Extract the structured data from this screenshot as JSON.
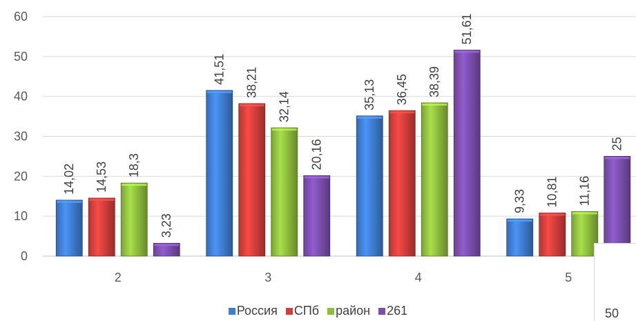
{
  "chart_data": {
    "type": "bar",
    "title": "",
    "xlabel": "",
    "ylabel": "",
    "ylim": [
      0,
      60
    ],
    "yticks": [
      0,
      10,
      20,
      30,
      40,
      50,
      60
    ],
    "grid": true,
    "legend_position": "bottom",
    "categories": [
      "2",
      "3",
      "4",
      "5"
    ],
    "series": [
      {
        "name": "Россия",
        "color": "#3f7dd1",
        "values": [
          14.02,
          41.51,
          35.13,
          9.33
        ],
        "labels": [
          "14,02",
          "41,51",
          "35,13",
          "9,33"
        ]
      },
      {
        "name": "СПб",
        "color": "#d23f3b",
        "values": [
          14.53,
          38.21,
          36.45,
          10.81
        ],
        "labels": [
          "14,53",
          "38,21",
          "36,45",
          "10,81"
        ]
      },
      {
        "name": "район",
        "color": "#8fbe3e",
        "values": [
          18.3,
          32.14,
          38.39,
          11.16
        ],
        "labels": [
          "18,3",
          "32,14",
          "38,39",
          "11,16"
        ]
      },
      {
        "name": "261",
        "color": "#7c4fae",
        "values": [
          3.23,
          20.16,
          51.61,
          25
        ],
        "labels": [
          "3,23",
          "20,16",
          "51,61",
          "25"
        ]
      }
    ]
  },
  "overlay": {
    "corner_value": "50"
  }
}
